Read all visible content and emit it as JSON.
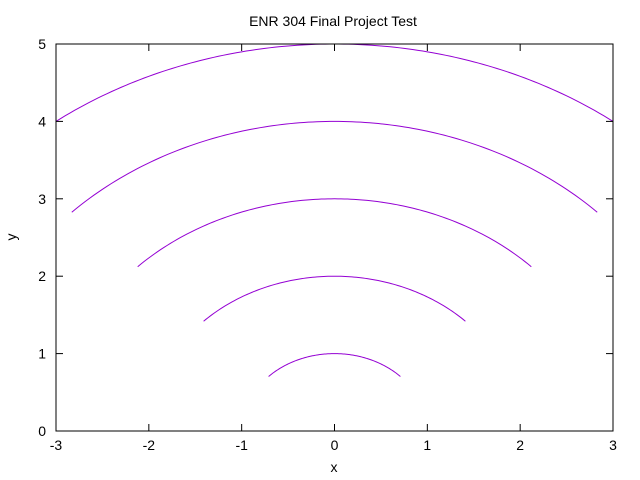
{
  "chart_data": {
    "type": "line",
    "title": "ENR 304 Final Project Test",
    "xlabel": "x",
    "ylabel": "y",
    "xlim": [
      -3,
      3
    ],
    "ylim": [
      0,
      5
    ],
    "x_ticks": [
      "-3",
      "-2",
      "-1",
      "0",
      "1",
      "2",
      "3"
    ],
    "y_ticks": [
      "0",
      "1",
      "2",
      "3",
      "4",
      "5"
    ],
    "grid": false,
    "legend": "none",
    "line_color": "#9400d3",
    "series": [
      {
        "x": [
          -0.71,
          -0.5,
          -0.25,
          0,
          0.25,
          0.5,
          0.71
        ],
        "y": [
          0.71,
          0.87,
          0.97,
          1.0,
          0.97,
          0.87,
          0.71
        ]
      },
      {
        "x": [
          -1.41,
          -1.0,
          -0.5,
          0,
          0.5,
          1.0,
          1.41
        ],
        "y": [
          1.41,
          1.73,
          1.94,
          2.0,
          1.94,
          1.73,
          1.41
        ]
      },
      {
        "x": [
          -2.12,
          -1.5,
          -0.75,
          0,
          0.75,
          1.5,
          2.12
        ],
        "y": [
          2.12,
          2.6,
          2.9,
          3.0,
          2.9,
          2.6,
          2.12
        ]
      },
      {
        "x": [
          -2.83,
          -2.0,
          -1.0,
          0,
          1.0,
          2.0,
          2.83
        ],
        "y": [
          2.83,
          3.46,
          3.87,
          4.0,
          3.87,
          3.46,
          2.83
        ]
      },
      {
        "x": [
          -3.0,
          -2.0,
          -1.0,
          0,
          1.0,
          2.0,
          3.0
        ],
        "y": [
          4.0,
          4.58,
          4.9,
          5.0,
          4.9,
          4.58,
          4.0
        ]
      }
    ]
  }
}
